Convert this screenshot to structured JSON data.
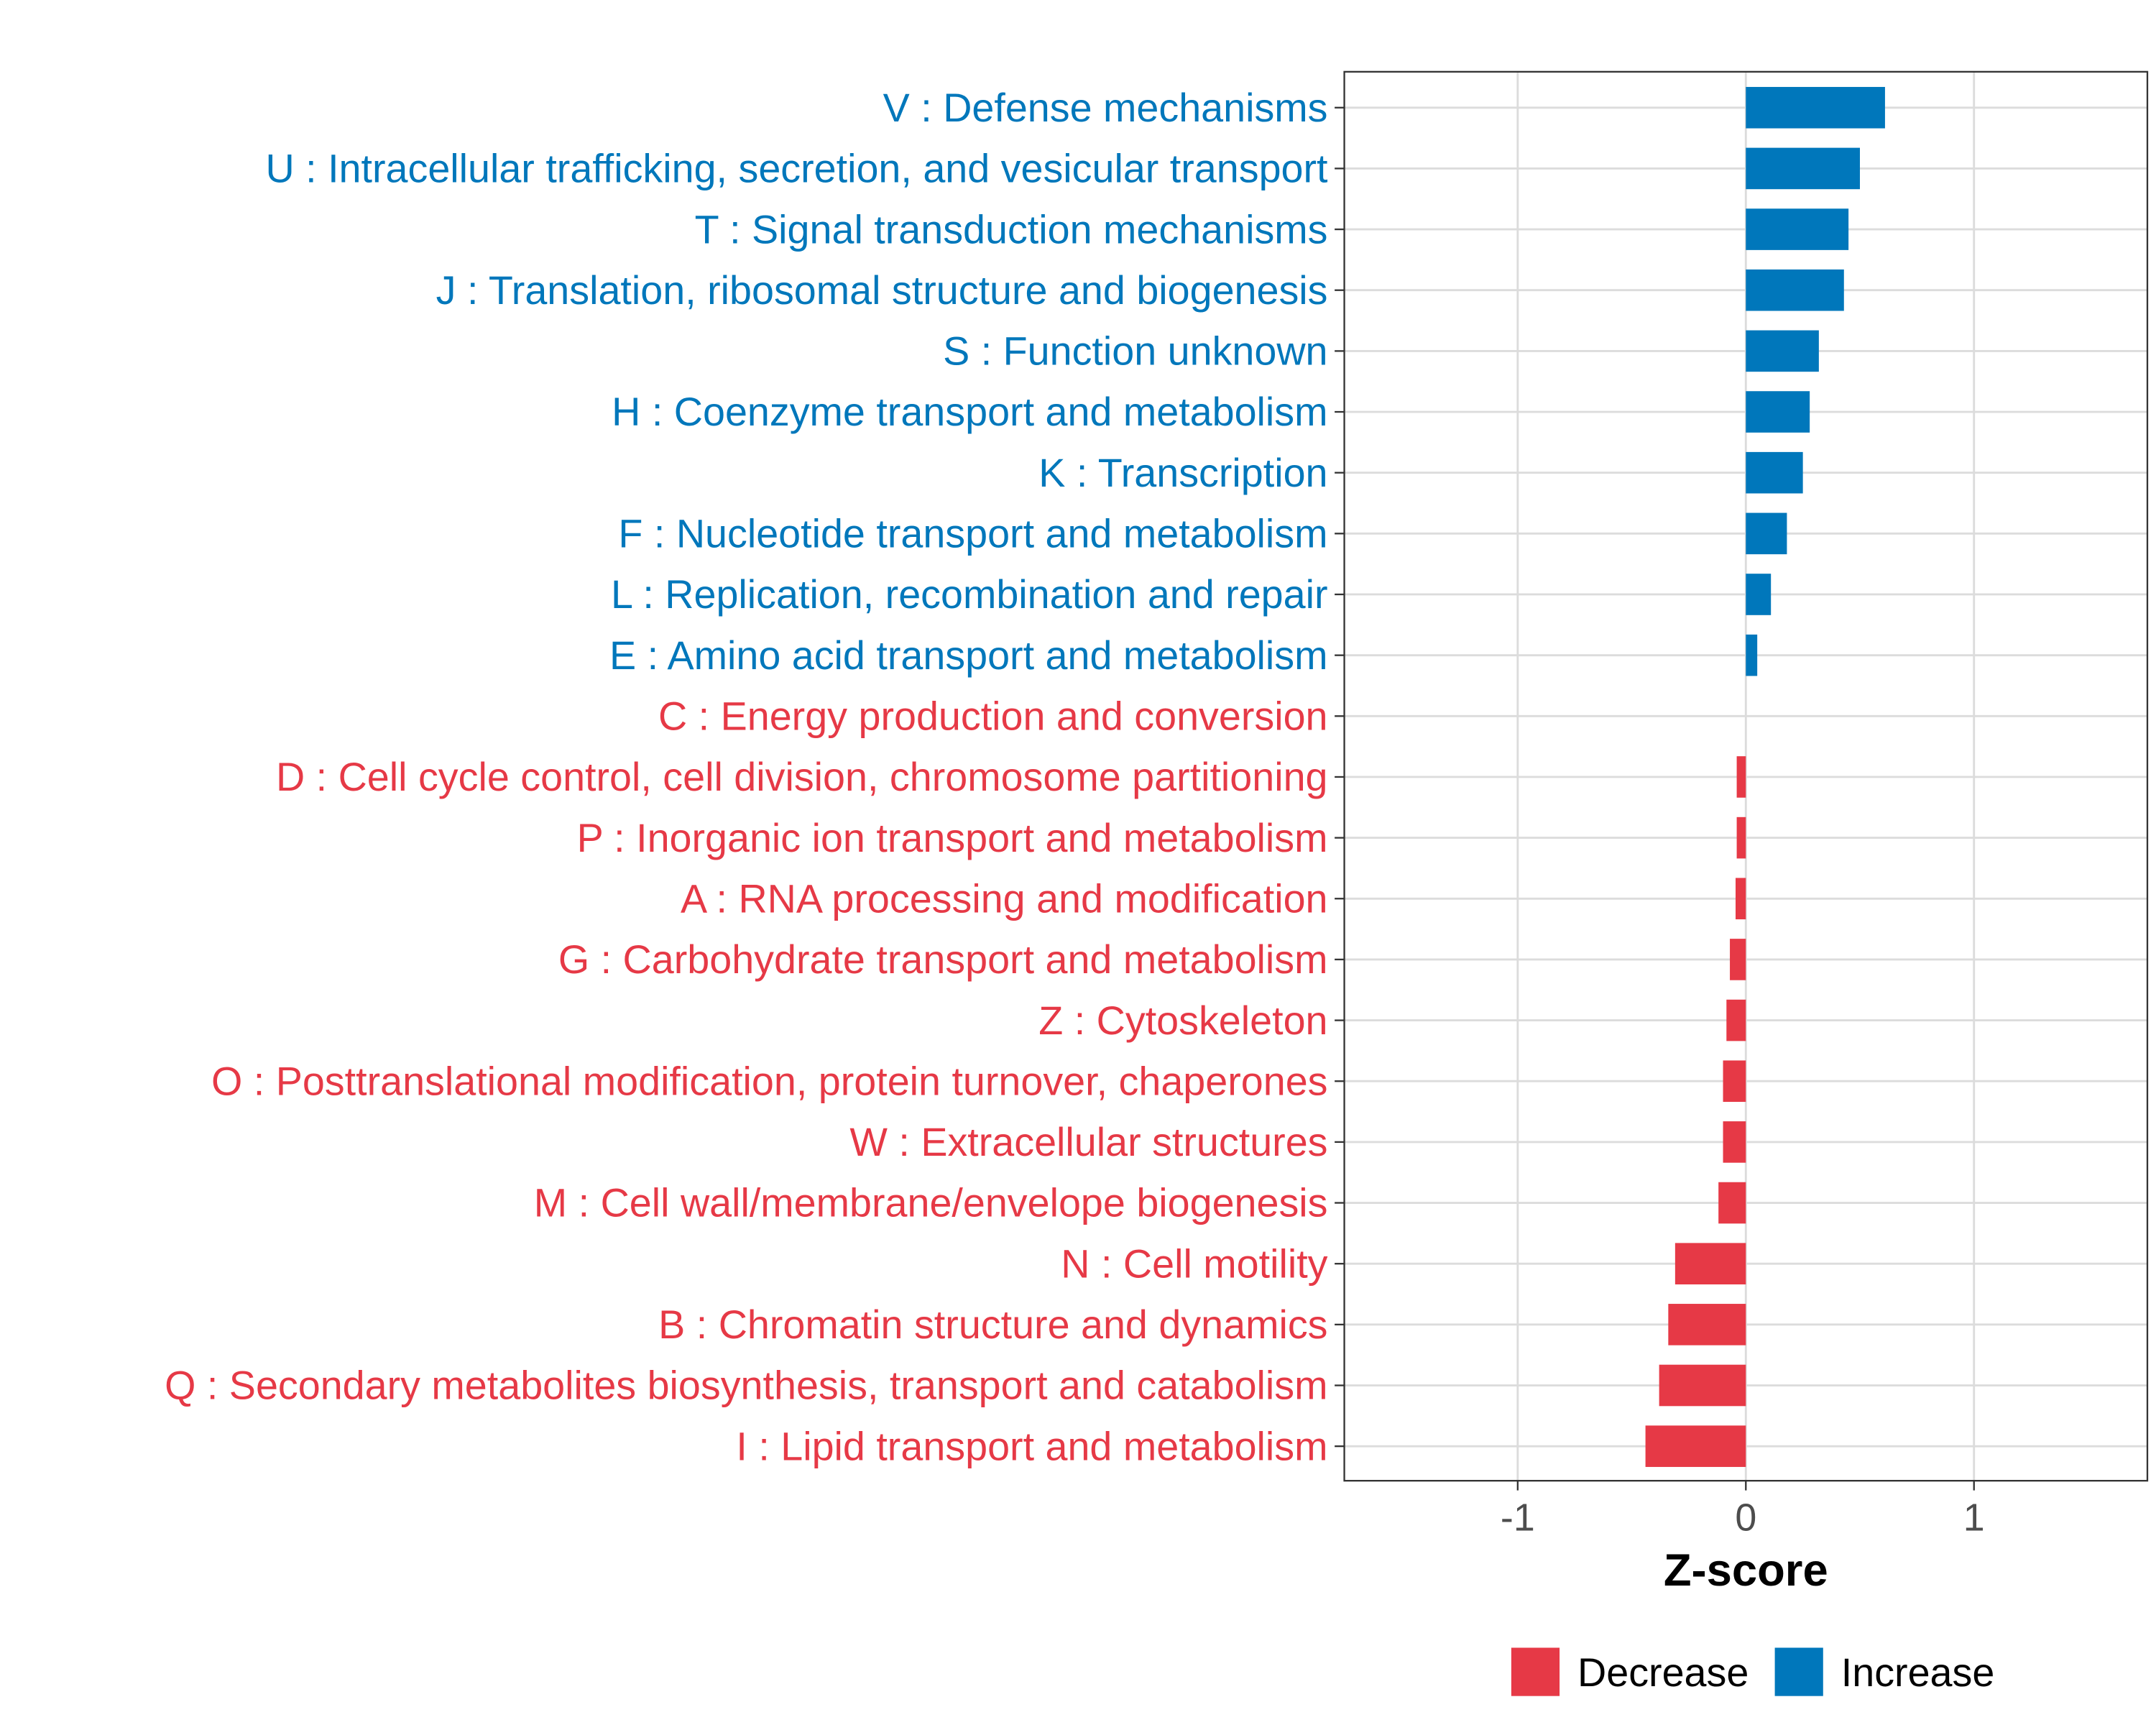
{
  "chart_data": {
    "type": "bar",
    "orientation": "horizontal",
    "title": "",
    "xlabel": "Z-score",
    "ylabel": "",
    "xlim": [
      -1.76,
      1.76
    ],
    "xticks": [
      -1,
      0,
      1
    ],
    "xtick_labels": [
      "-1",
      "0",
      "1"
    ],
    "grid": true,
    "categories": [
      "V : Defense mechanisms",
      "U : Intracellular trafficking, secretion, and vesicular transport",
      "T : Signal transduction mechanisms",
      "J : Translation, ribosomal structure and biogenesis",
      "S : Function unknown",
      "H : Coenzyme transport and metabolism",
      "K : Transcription",
      "F : Nucleotide transport and metabolism",
      "L : Replication, recombination and repair",
      "E : Amino acid transport and metabolism",
      "C : Energy production and conversion",
      "D : Cell cycle control, cell division, chromosome partitioning",
      "P : Inorganic ion transport and metabolism",
      "A : RNA processing and modification",
      "G : Carbohydrate transport and metabolism",
      "Z : Cytoskeleton",
      "O : Posttranslational modification, protein turnover, chaperones",
      "W : Extracellular structures",
      "M : Cell wall/membrane/envelope biogenesis",
      "N : Cell motility",
      "B : Chromatin structure and dynamics",
      "Q : Secondary metabolites biosynthesis, transport and catabolism",
      "I : Lipid transport and metabolism"
    ],
    "values": [
      0.61,
      0.5,
      0.45,
      0.43,
      0.32,
      0.28,
      0.25,
      0.18,
      0.11,
      0.05,
      0.0,
      -0.04,
      -0.04,
      -0.045,
      -0.07,
      -0.085,
      -0.1,
      -0.1,
      -0.12,
      -0.31,
      -0.34,
      -0.38,
      -0.44
    ],
    "groups": [
      "Increase",
      "Increase",
      "Increase",
      "Increase",
      "Increase",
      "Increase",
      "Increase",
      "Increase",
      "Increase",
      "Increase",
      "Decrease",
      "Decrease",
      "Decrease",
      "Decrease",
      "Decrease",
      "Decrease",
      "Decrease",
      "Decrease",
      "Decrease",
      "Decrease",
      "Decrease",
      "Decrease",
      "Decrease"
    ],
    "legend": {
      "placement": "bottom",
      "entries": [
        {
          "label": "Decrease",
          "color": "#E63946"
        },
        {
          "label": "Increase",
          "color": "#0077BB"
        }
      ]
    },
    "colors": {
      "Decrease": "#E63946",
      "Increase": "#0077BB"
    }
  }
}
